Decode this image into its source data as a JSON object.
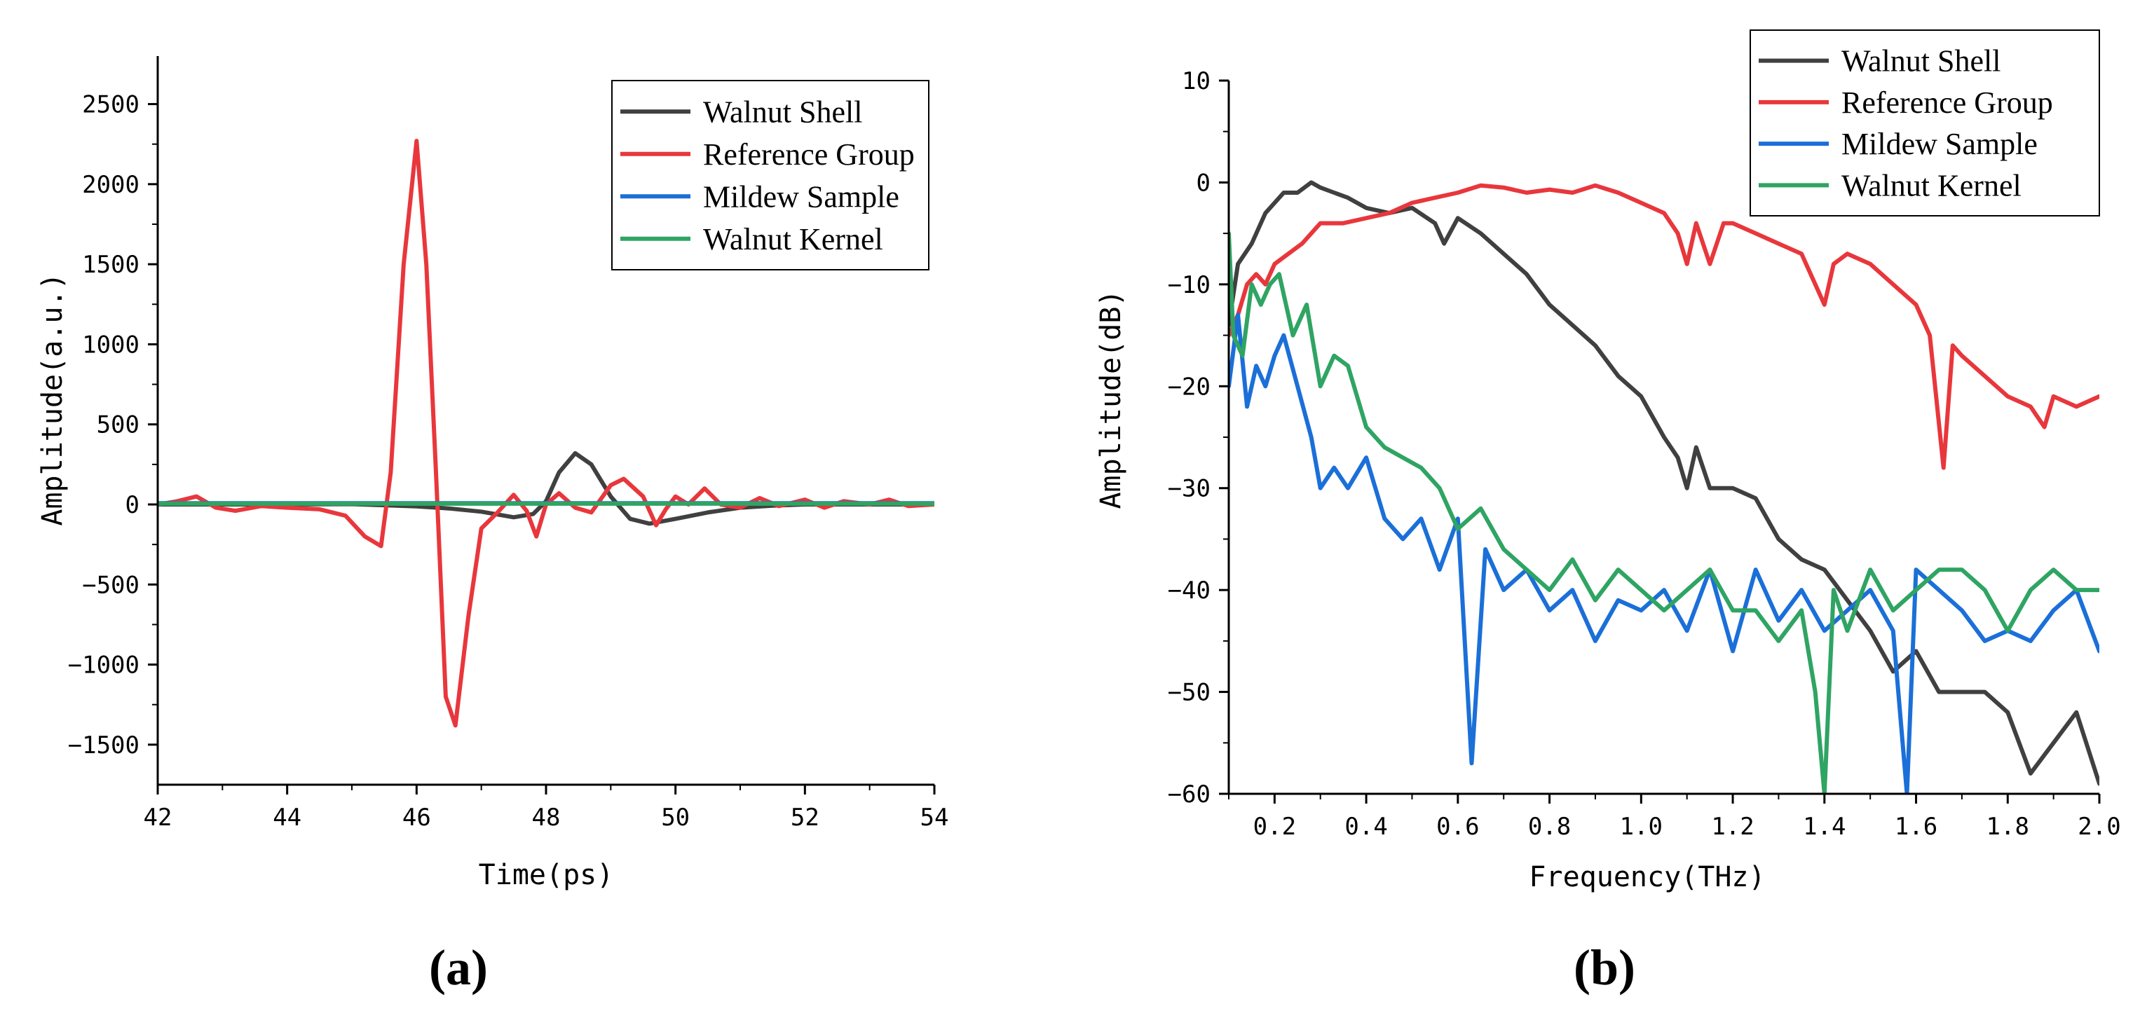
{
  "colors": {
    "walnut_shell": "#404040",
    "reference_group": "#e8373c",
    "mildew_sample": "#1b6fd8",
    "walnut_kernel": "#2fa463",
    "axis": "#000000"
  },
  "chart_data": [
    {
      "type": "line",
      "panel_label": "(a)",
      "xlabel": "Time(ps)",
      "ylabel": "Amplitude(a.u.)",
      "xlim": [
        42,
        54
      ],
      "ylim": [
        -1750,
        2800
      ],
      "xticks": [
        42,
        44,
        46,
        48,
        50,
        52,
        54
      ],
      "yticks": [
        2500,
        2000,
        1500,
        1000,
        500,
        0,
        -500,
        -1000,
        -1500
      ],
      "legend_position": "top-right",
      "series": [
        {
          "name": "Walnut Shell",
          "color_key": "walnut_shell",
          "x": [
            42,
            44,
            45,
            45.5,
            46,
            46.5,
            47,
            47.5,
            47.8,
            48,
            48.2,
            48.45,
            48.7,
            49,
            49.3,
            49.6,
            50,
            50.5,
            51,
            51.5,
            52,
            53,
            54
          ],
          "y": [
            0,
            0,
            2,
            -5,
            -12,
            -25,
            -45,
            -80,
            -60,
            20,
            200,
            320,
            250,
            50,
            -90,
            -120,
            -90,
            -50,
            -20,
            -8,
            0,
            0,
            0
          ]
        },
        {
          "name": "Reference Group",
          "color_key": "reference_group",
          "x": [
            42,
            42.3,
            42.6,
            42.9,
            43.2,
            43.6,
            44,
            44.5,
            44.9,
            45.2,
            45.45,
            45.6,
            45.8,
            46,
            46.15,
            46.3,
            46.45,
            46.6,
            46.8,
            47,
            47.25,
            47.5,
            47.7,
            47.85,
            48,
            48.2,
            48.45,
            48.7,
            49,
            49.2,
            49.5,
            49.7,
            49.85,
            50,
            50.2,
            50.45,
            50.7,
            51,
            51.3,
            51.6,
            52,
            52.3,
            52.6,
            53,
            53.3,
            53.6,
            54
          ],
          "y": [
            0,
            20,
            50,
            -20,
            -40,
            -10,
            -20,
            -30,
            -70,
            -200,
            -260,
            200,
            1500,
            2270,
            1500,
            200,
            -1200,
            -1380,
            -700,
            -150,
            -50,
            60,
            -40,
            -200,
            0,
            70,
            -20,
            -50,
            120,
            160,
            50,
            -130,
            -30,
            50,
            0,
            100,
            0,
            -20,
            40,
            -10,
            30,
            -20,
            20,
            0,
            30,
            -10,
            0
          ]
        },
        {
          "name": "Mildew Sample",
          "color_key": "mildew_sample",
          "x": [
            42,
            54
          ],
          "y": [
            8,
            8
          ]
        },
        {
          "name": "Walnut Kernel",
          "color_key": "walnut_kernel",
          "x": [
            42,
            54
          ],
          "y": [
            5,
            5
          ]
        }
      ]
    },
    {
      "type": "line",
      "panel_label": "(b)",
      "xlabel": "Frequency(THz)",
      "ylabel": "Amplitude(dB)",
      "xlim": [
        0.1,
        2.0
      ],
      "ylim": [
        -60,
        10
      ],
      "xticks": [
        0.2,
        0.4,
        0.6,
        0.8,
        1.0,
        1.2,
        1.4,
        1.6,
        1.8,
        2.0
      ],
      "xtick_labels": [
        "0.2",
        "0.4",
        "0.6",
        "0.8",
        "1.0",
        "1.2",
        "1.4",
        "1.6",
        "1.8",
        "2.0"
      ],
      "yticks": [
        10,
        0,
        -10,
        -20,
        -30,
        -40,
        -50,
        -60
      ],
      "legend_position": "top-right",
      "series": [
        {
          "name": "Walnut Shell",
          "color_key": "walnut_shell",
          "x": [
            0.1,
            0.12,
            0.15,
            0.18,
            0.2,
            0.22,
            0.25,
            0.28,
            0.3,
            0.33,
            0.36,
            0.4,
            0.45,
            0.5,
            0.55,
            0.57,
            0.6,
            0.65,
            0.7,
            0.75,
            0.8,
            0.85,
            0.9,
            0.95,
            1.0,
            1.05,
            1.08,
            1.1,
            1.12,
            1.15,
            1.2,
            1.25,
            1.3,
            1.35,
            1.4,
            1.45,
            1.5,
            1.55,
            1.6,
            1.65,
            1.7,
            1.75,
            1.8,
            1.85,
            1.9,
            1.95,
            2.0
          ],
          "y": [
            -14,
            -8,
            -6,
            -3,
            -2,
            -1,
            -1,
            0,
            -0.5,
            -1,
            -1.5,
            -2.5,
            -3,
            -2.5,
            -4,
            -6,
            -3.5,
            -5,
            -7,
            -9,
            -12,
            -14,
            -16,
            -19,
            -21,
            -25,
            -27,
            -30,
            -26,
            -30,
            -30,
            -31,
            -35,
            -37,
            -38,
            -41,
            -44,
            -48,
            -46,
            -50,
            -50,
            -50,
            -52,
            -58,
            -55,
            -52,
            -59
          ]
        },
        {
          "name": "Reference Group",
          "color_key": "reference_group",
          "x": [
            0.1,
            0.12,
            0.14,
            0.16,
            0.18,
            0.2,
            0.23,
            0.26,
            0.3,
            0.35,
            0.4,
            0.45,
            0.5,
            0.55,
            0.6,
            0.65,
            0.7,
            0.75,
            0.8,
            0.85,
            0.9,
            0.95,
            1.0,
            1.05,
            1.08,
            1.1,
            1.12,
            1.15,
            1.18,
            1.2,
            1.25,
            1.3,
            1.35,
            1.4,
            1.42,
            1.45,
            1.5,
            1.55,
            1.6,
            1.63,
            1.66,
            1.68,
            1.7,
            1.75,
            1.8,
            1.85,
            1.88,
            1.9,
            1.95,
            2.0
          ],
          "y": [
            -15,
            -13,
            -10,
            -9,
            -10,
            -8,
            -7,
            -6,
            -4,
            -4,
            -3.5,
            -3,
            -2,
            -1.5,
            -1,
            -0.3,
            -0.5,
            -1,
            -0.7,
            -1,
            -0.3,
            -1,
            -2,
            -3,
            -5,
            -8,
            -4,
            -8,
            -4,
            -4,
            -5,
            -6,
            -7,
            -12,
            -8,
            -7,
            -8,
            -10,
            -12,
            -15,
            -28,
            -16,
            -17,
            -19,
            -21,
            -22,
            -24,
            -21,
            -22,
            -21
          ]
        },
        {
          "name": "Mildew Sample",
          "color_key": "mildew_sample",
          "x": [
            0.1,
            0.12,
            0.14,
            0.16,
            0.18,
            0.2,
            0.22,
            0.25,
            0.28,
            0.3,
            0.33,
            0.36,
            0.4,
            0.44,
            0.48,
            0.52,
            0.56,
            0.6,
            0.63,
            0.66,
            0.7,
            0.75,
            0.8,
            0.85,
            0.9,
            0.95,
            1.0,
            1.05,
            1.1,
            1.15,
            1.2,
            1.25,
            1.3,
            1.35,
            1.4,
            1.45,
            1.5,
            1.55,
            1.58,
            1.6,
            1.65,
            1.7,
            1.75,
            1.8,
            1.85,
            1.9,
            1.95,
            2.0
          ],
          "y": [
            -20,
            -13,
            -22,
            -18,
            -20,
            -17,
            -15,
            -20,
            -25,
            -30,
            -28,
            -30,
            -27,
            -33,
            -35,
            -33,
            -38,
            -33,
            -57,
            -36,
            -40,
            -38,
            -42,
            -40,
            -45,
            -41,
            -42,
            -40,
            -44,
            -38,
            -46,
            -38,
            -43,
            -40,
            -44,
            -42,
            -40,
            -44,
            -60,
            -38,
            -40,
            -42,
            -45,
            -44,
            -45,
            -42,
            -40,
            -46
          ]
        },
        {
          "name": "Walnut Kernel",
          "color_key": "walnut_kernel",
          "x": [
            0.1,
            0.11,
            0.13,
            0.15,
            0.17,
            0.19,
            0.21,
            0.24,
            0.27,
            0.3,
            0.33,
            0.36,
            0.4,
            0.44,
            0.48,
            0.52,
            0.56,
            0.6,
            0.65,
            0.7,
            0.75,
            0.8,
            0.85,
            0.9,
            0.95,
            1.0,
            1.05,
            1.1,
            1.15,
            1.2,
            1.25,
            1.3,
            1.35,
            1.38,
            1.4,
            1.42,
            1.45,
            1.5,
            1.55,
            1.6,
            1.65,
            1.7,
            1.75,
            1.8,
            1.85,
            1.9,
            1.95,
            2.0
          ],
          "y": [
            -5,
            -15,
            -17,
            -10,
            -12,
            -10,
            -9,
            -15,
            -12,
            -20,
            -17,
            -18,
            -24,
            -26,
            -27,
            -28,
            -30,
            -34,
            -32,
            -36,
            -38,
            -40,
            -37,
            -41,
            -38,
            -40,
            -42,
            -40,
            -38,
            -42,
            -42,
            -45,
            -42,
            -50,
            -60,
            -40,
            -44,
            -38,
            -42,
            -40,
            -38,
            -38,
            -40,
            -44,
            -40,
            -38,
            -40,
            -40
          ]
        }
      ]
    }
  ]
}
